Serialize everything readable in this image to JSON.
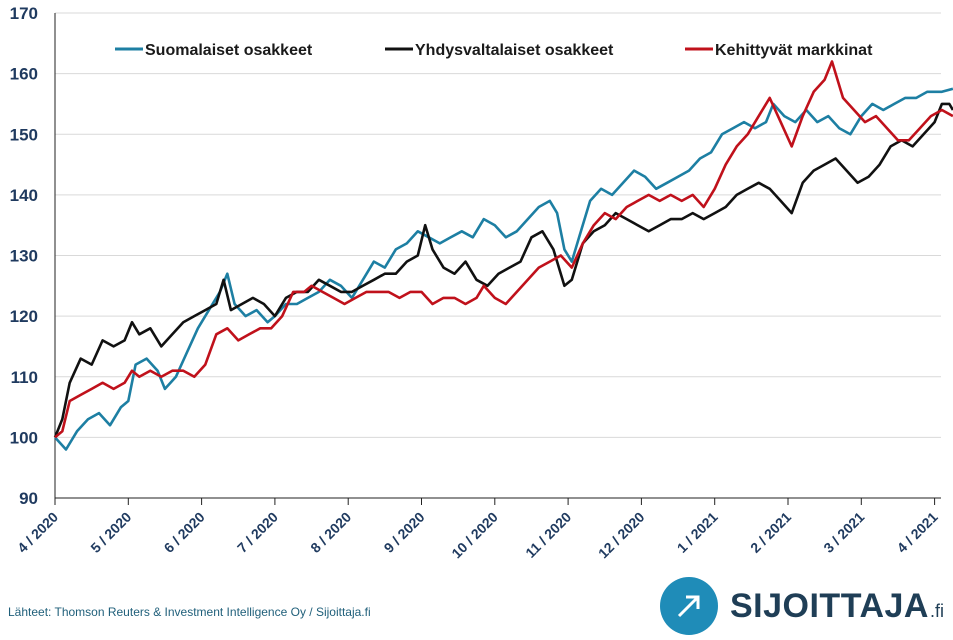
{
  "chart_data": {
    "type": "line",
    "title": "",
    "xlabel": "",
    "ylabel": "",
    "ylim": [
      90,
      170
    ],
    "yticks": [
      "90",
      "100",
      "110",
      "120",
      "130",
      "140",
      "150",
      "160",
      "170"
    ],
    "x_ticks": [
      "4 / 2020",
      "5 / 2020",
      "6 / 2020",
      "7 / 2020",
      "8 / 2020",
      "9 / 2020",
      "10 / 2020",
      "11 / 2020",
      "12 / 2020",
      "1 / 2021",
      "2 / 2021",
      "3 / 2021",
      "4 / 2021"
    ],
    "xlim_months": [
      0,
      12.25
    ],
    "grid": "horizontal",
    "legend_position": "top",
    "series": [
      {
        "name": "Suomalaiset osakkeet",
        "color": "#1d7fa3",
        "points": [
          [
            0,
            100
          ],
          [
            0.15,
            98
          ],
          [
            0.3,
            101
          ],
          [
            0.45,
            103
          ],
          [
            0.6,
            104
          ],
          [
            0.75,
            102
          ],
          [
            0.9,
            105
          ],
          [
            1.0,
            106
          ],
          [
            1.1,
            112
          ],
          [
            1.25,
            113
          ],
          [
            1.4,
            111
          ],
          [
            1.5,
            108
          ],
          [
            1.65,
            110
          ],
          [
            1.8,
            114
          ],
          [
            1.95,
            118
          ],
          [
            2.1,
            121
          ],
          [
            2.25,
            124
          ],
          [
            2.35,
            127
          ],
          [
            2.45,
            122
          ],
          [
            2.6,
            120
          ],
          [
            2.75,
            121
          ],
          [
            2.9,
            119
          ],
          [
            3.0,
            120
          ],
          [
            3.15,
            122
          ],
          [
            3.3,
            122
          ],
          [
            3.45,
            123
          ],
          [
            3.6,
            124
          ],
          [
            3.75,
            126
          ],
          [
            3.9,
            125
          ],
          [
            4.05,
            123
          ],
          [
            4.2,
            126
          ],
          [
            4.35,
            129
          ],
          [
            4.5,
            128
          ],
          [
            4.65,
            131
          ],
          [
            4.8,
            132
          ],
          [
            4.95,
            134
          ],
          [
            5.1,
            133
          ],
          [
            5.25,
            132
          ],
          [
            5.4,
            133
          ],
          [
            5.55,
            134
          ],
          [
            5.7,
            133
          ],
          [
            5.85,
            136
          ],
          [
            6.0,
            135
          ],
          [
            6.15,
            133
          ],
          [
            6.3,
            134
          ],
          [
            6.45,
            136
          ],
          [
            6.6,
            138
          ],
          [
            6.75,
            139
          ],
          [
            6.85,
            137
          ],
          [
            6.95,
            131
          ],
          [
            7.05,
            129
          ],
          [
            7.15,
            133
          ],
          [
            7.3,
            139
          ],
          [
            7.45,
            141
          ],
          [
            7.6,
            140
          ],
          [
            7.75,
            142
          ],
          [
            7.9,
            144
          ],
          [
            8.05,
            143
          ],
          [
            8.2,
            141
          ],
          [
            8.35,
            142
          ],
          [
            8.5,
            143
          ],
          [
            8.65,
            144
          ],
          [
            8.8,
            146
          ],
          [
            8.95,
            147
          ],
          [
            9.1,
            150
          ],
          [
            9.25,
            151
          ],
          [
            9.4,
            152
          ],
          [
            9.55,
            151
          ],
          [
            9.7,
            152
          ],
          [
            9.8,
            155
          ],
          [
            9.95,
            153
          ],
          [
            10.1,
            152
          ],
          [
            10.25,
            154
          ],
          [
            10.4,
            152
          ],
          [
            10.55,
            153
          ],
          [
            10.7,
            151
          ],
          [
            10.85,
            150
          ],
          [
            11.0,
            153
          ],
          [
            11.15,
            155
          ],
          [
            11.3,
            154
          ],
          [
            11.45,
            155
          ],
          [
            11.6,
            156
          ],
          [
            11.75,
            156
          ],
          [
            11.9,
            157
          ],
          [
            12.1,
            157
          ],
          [
            12.25,
            157.5
          ]
        ]
      },
      {
        "name": "Yhdysvaltalaiset osakkeet",
        "color": "#111111",
        "points": [
          [
            0,
            100
          ],
          [
            0.1,
            103
          ],
          [
            0.2,
            109
          ],
          [
            0.35,
            113
          ],
          [
            0.5,
            112
          ],
          [
            0.65,
            116
          ],
          [
            0.8,
            115
          ],
          [
            0.95,
            116
          ],
          [
            1.05,
            119
          ],
          [
            1.15,
            117
          ],
          [
            1.3,
            118
          ],
          [
            1.45,
            115
          ],
          [
            1.6,
            117
          ],
          [
            1.75,
            119
          ],
          [
            1.9,
            120
          ],
          [
            2.05,
            121
          ],
          [
            2.2,
            122
          ],
          [
            2.3,
            126
          ],
          [
            2.4,
            121
          ],
          [
            2.55,
            122
          ],
          [
            2.7,
            123
          ],
          [
            2.85,
            122
          ],
          [
            3.0,
            120
          ],
          [
            3.15,
            123
          ],
          [
            3.3,
            124
          ],
          [
            3.45,
            124
          ],
          [
            3.6,
            126
          ],
          [
            3.75,
            125
          ],
          [
            3.9,
            124
          ],
          [
            4.05,
            124
          ],
          [
            4.2,
            125
          ],
          [
            4.35,
            126
          ],
          [
            4.5,
            127
          ],
          [
            4.65,
            127
          ],
          [
            4.8,
            129
          ],
          [
            4.95,
            130
          ],
          [
            5.05,
            135
          ],
          [
            5.15,
            131
          ],
          [
            5.3,
            128
          ],
          [
            5.45,
            127
          ],
          [
            5.6,
            129
          ],
          [
            5.75,
            126
          ],
          [
            5.9,
            125
          ],
          [
            6.05,
            127
          ],
          [
            6.2,
            128
          ],
          [
            6.35,
            129
          ],
          [
            6.5,
            133
          ],
          [
            6.65,
            134
          ],
          [
            6.8,
            131
          ],
          [
            6.95,
            125
          ],
          [
            7.05,
            126
          ],
          [
            7.2,
            132
          ],
          [
            7.35,
            134
          ],
          [
            7.5,
            135
          ],
          [
            7.65,
            137
          ],
          [
            7.8,
            136
          ],
          [
            7.95,
            135
          ],
          [
            8.1,
            134
          ],
          [
            8.25,
            135
          ],
          [
            8.4,
            136
          ],
          [
            8.55,
            136
          ],
          [
            8.7,
            137
          ],
          [
            8.85,
            136
          ],
          [
            9.0,
            137
          ],
          [
            9.15,
            138
          ],
          [
            9.3,
            140
          ],
          [
            9.45,
            141
          ],
          [
            9.6,
            142
          ],
          [
            9.75,
            141
          ],
          [
            9.9,
            139
          ],
          [
            10.05,
            137
          ],
          [
            10.2,
            142
          ],
          [
            10.35,
            144
          ],
          [
            10.5,
            145
          ],
          [
            10.65,
            146
          ],
          [
            10.8,
            144
          ],
          [
            10.95,
            142
          ],
          [
            11.1,
            143
          ],
          [
            11.25,
            145
          ],
          [
            11.4,
            148
          ],
          [
            11.55,
            149
          ],
          [
            11.7,
            148
          ],
          [
            11.85,
            150
          ],
          [
            12.0,
            152
          ],
          [
            12.1,
            155
          ],
          [
            12.2,
            155
          ],
          [
            12.25,
            154
          ]
        ]
      },
      {
        "name": "Kehittyvät markkinat",
        "color": "#c0111b",
        "points": [
          [
            0,
            100
          ],
          [
            0.1,
            101
          ],
          [
            0.2,
            106
          ],
          [
            0.35,
            107
          ],
          [
            0.5,
            108
          ],
          [
            0.65,
            109
          ],
          [
            0.8,
            108
          ],
          [
            0.95,
            109
          ],
          [
            1.05,
            111
          ],
          [
            1.15,
            110
          ],
          [
            1.3,
            111
          ],
          [
            1.45,
            110
          ],
          [
            1.6,
            111
          ],
          [
            1.75,
            111
          ],
          [
            1.9,
            110
          ],
          [
            2.05,
            112
          ],
          [
            2.2,
            117
          ],
          [
            2.35,
            118
          ],
          [
            2.5,
            116
          ],
          [
            2.65,
            117
          ],
          [
            2.8,
            118
          ],
          [
            2.95,
            118
          ],
          [
            3.1,
            120
          ],
          [
            3.25,
            124
          ],
          [
            3.4,
            124
          ],
          [
            3.5,
            125
          ],
          [
            3.65,
            124
          ],
          [
            3.8,
            123
          ],
          [
            3.95,
            122
          ],
          [
            4.1,
            123
          ],
          [
            4.25,
            124
          ],
          [
            4.4,
            124
          ],
          [
            4.55,
            124
          ],
          [
            4.7,
            123
          ],
          [
            4.85,
            124
          ],
          [
            5.0,
            124
          ],
          [
            5.15,
            122
          ],
          [
            5.3,
            123
          ],
          [
            5.45,
            123
          ],
          [
            5.6,
            122
          ],
          [
            5.75,
            123
          ],
          [
            5.85,
            125
          ],
          [
            6.0,
            123
          ],
          [
            6.15,
            122
          ],
          [
            6.3,
            124
          ],
          [
            6.45,
            126
          ],
          [
            6.6,
            128
          ],
          [
            6.75,
            129
          ],
          [
            6.9,
            130
          ],
          [
            7.05,
            128
          ],
          [
            7.2,
            132
          ],
          [
            7.35,
            135
          ],
          [
            7.5,
            137
          ],
          [
            7.65,
            136
          ],
          [
            7.8,
            138
          ],
          [
            7.95,
            139
          ],
          [
            8.1,
            140
          ],
          [
            8.25,
            139
          ],
          [
            8.4,
            140
          ],
          [
            8.55,
            139
          ],
          [
            8.7,
            140
          ],
          [
            8.85,
            138
          ],
          [
            9.0,
            141
          ],
          [
            9.15,
            145
          ],
          [
            9.3,
            148
          ],
          [
            9.45,
            150
          ],
          [
            9.6,
            153
          ],
          [
            9.75,
            156
          ],
          [
            9.9,
            152
          ],
          [
            10.05,
            148
          ],
          [
            10.2,
            153
          ],
          [
            10.35,
            157
          ],
          [
            10.5,
            159
          ],
          [
            10.6,
            162
          ],
          [
            10.75,
            156
          ],
          [
            10.9,
            154
          ],
          [
            11.05,
            152
          ],
          [
            11.2,
            153
          ],
          [
            11.35,
            151
          ],
          [
            11.5,
            149
          ],
          [
            11.65,
            149
          ],
          [
            11.8,
            151
          ],
          [
            11.95,
            153
          ],
          [
            12.1,
            154
          ],
          [
            12.25,
            153
          ]
        ]
      }
    ]
  },
  "source_text": "Lähteet: Thomson Reuters & Investment Intelligence Oy / Sijoittaja.fi",
  "logo": {
    "word": "SIJOITTAJA",
    "tld": ".fi",
    "color": "#1f8cb8"
  }
}
